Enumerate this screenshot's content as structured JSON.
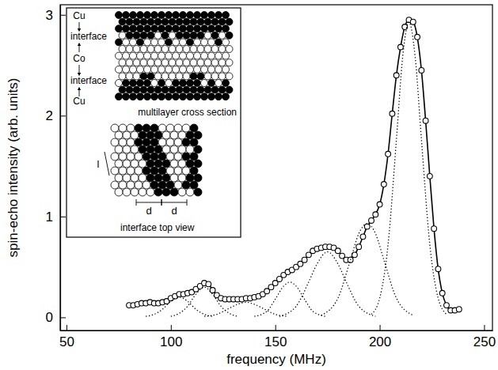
{
  "chart_data": {
    "type": "line",
    "x_label": "frequency (MHz)",
    "y_label": "spin-echo intensity (arb. units)",
    "xlim": [
      47,
      254
    ],
    "ylim": [
      -0.13,
      3.1
    ],
    "xticks": [
      50,
      100,
      150,
      200,
      250
    ],
    "yticks": [
      0,
      1,
      2,
      3
    ],
    "grid": false,
    "annotations": [
      "Cu",
      "interface",
      "Co",
      "interface",
      "Cu",
      "multilayer cross section",
      "interface top view",
      "l",
      "d",
      "d"
    ],
    "series": [
      {
        "type": "line",
        "color": "#000000",
        "marker": "circle",
        "line_style": "solid",
        "x": [
          80,
          82,
          84,
          86,
          88,
          90,
          92,
          94,
          96,
          98,
          100,
          102,
          104,
          106,
          108,
          110,
          112,
          114,
          116,
          118,
          120,
          122,
          124,
          126,
          128,
          130,
          132,
          134,
          136,
          138,
          140,
          142,
          144,
          146,
          148,
          150,
          152,
          154,
          156,
          158,
          160,
          162,
          164,
          166,
          168,
          170,
          172,
          174,
          176,
          178,
          180,
          182,
          184,
          186,
          188,
          190,
          192,
          194,
          196,
          198,
          200,
          202,
          204,
          206,
          208,
          210,
          212,
          214,
          216,
          218,
          220,
          222,
          224,
          226,
          228,
          230,
          232,
          234,
          236,
          238
        ],
        "values": [
          0.12,
          0.12,
          0.13,
          0.14,
          0.14,
          0.15,
          0.14,
          0.14,
          0.15,
          0.16,
          0.19,
          0.21,
          0.23,
          0.23,
          0.24,
          0.25,
          0.28,
          0.31,
          0.34,
          0.33,
          0.27,
          0.22,
          0.19,
          0.18,
          0.18,
          0.18,
          0.18,
          0.18,
          0.19,
          0.19,
          0.2,
          0.21,
          0.23,
          0.26,
          0.3,
          0.34,
          0.38,
          0.42,
          0.45,
          0.47,
          0.5,
          0.53,
          0.57,
          0.62,
          0.66,
          0.68,
          0.69,
          0.7,
          0.7,
          0.69,
          0.66,
          0.61,
          0.57,
          0.57,
          0.62,
          0.7,
          0.8,
          0.9,
          0.96,
          1.02,
          1.12,
          1.32,
          1.62,
          2.02,
          2.4,
          2.68,
          2.88,
          2.95,
          2.93,
          2.78,
          2.45,
          1.95,
          1.4,
          0.88,
          0.48,
          0.24,
          0.12,
          0.07,
          0.07,
          0.08
        ]
      },
      {
        "type": "line",
        "color": "#000000",
        "marker": "none",
        "line_style": "dotted",
        "x": [
          88,
          92,
          96,
          100,
          104,
          108,
          112,
          116,
          120
        ],
        "values": [
          0.01,
          0.03,
          0.08,
          0.16,
          0.2,
          0.16,
          0.08,
          0.03,
          0.01
        ]
      },
      {
        "type": "line",
        "color": "#000000",
        "marker": "none",
        "line_style": "dotted",
        "x": [
          100,
          104,
          108,
          112,
          116,
          120,
          124,
          128,
          132
        ],
        "values": [
          0.01,
          0.04,
          0.11,
          0.23,
          0.3,
          0.23,
          0.11,
          0.04,
          0.01
        ]
      },
      {
        "type": "line",
        "color": "#000000",
        "marker": "none",
        "line_style": "dotted",
        "x": [
          116,
          122,
          128,
          132,
          136,
          140,
          144,
          150,
          156
        ],
        "values": [
          0.01,
          0.03,
          0.09,
          0.13,
          0.15,
          0.13,
          0.09,
          0.03,
          0.01
        ]
      },
      {
        "type": "line",
        "color": "#000000",
        "marker": "none",
        "line_style": "dotted",
        "x": [
          140,
          146,
          150,
          154,
          157,
          160,
          164,
          168,
          174
        ],
        "values": [
          0.01,
          0.06,
          0.18,
          0.31,
          0.35,
          0.31,
          0.18,
          0.06,
          0.01
        ]
      },
      {
        "type": "line",
        "color": "#000000",
        "marker": "none",
        "line_style": "dotted",
        "x": [
          152,
          160,
          166,
          170,
          175,
          180,
          184,
          190,
          198
        ],
        "values": [
          0.01,
          0.11,
          0.35,
          0.53,
          0.65,
          0.53,
          0.35,
          0.11,
          0.01
        ]
      },
      {
        "type": "line",
        "color": "#000000",
        "marker": "none",
        "line_style": "dotted",
        "x": [
          172,
          180,
          186,
          190,
          194,
          198,
          202,
          208,
          216
        ],
        "values": [
          0.02,
          0.19,
          0.57,
          0.83,
          0.93,
          0.83,
          0.57,
          0.19,
          0.02
        ]
      },
      {
        "type": "line",
        "color": "#000000",
        "marker": "none",
        "line_style": "dotted",
        "x": [
          196,
          200,
          204,
          208,
          211,
          214,
          217,
          220,
          224,
          228,
          232
        ],
        "values": [
          0.03,
          0.19,
          0.72,
          1.76,
          2.58,
          2.93,
          2.58,
          1.76,
          0.72,
          0.19,
          0.03
        ]
      }
    ]
  }
}
